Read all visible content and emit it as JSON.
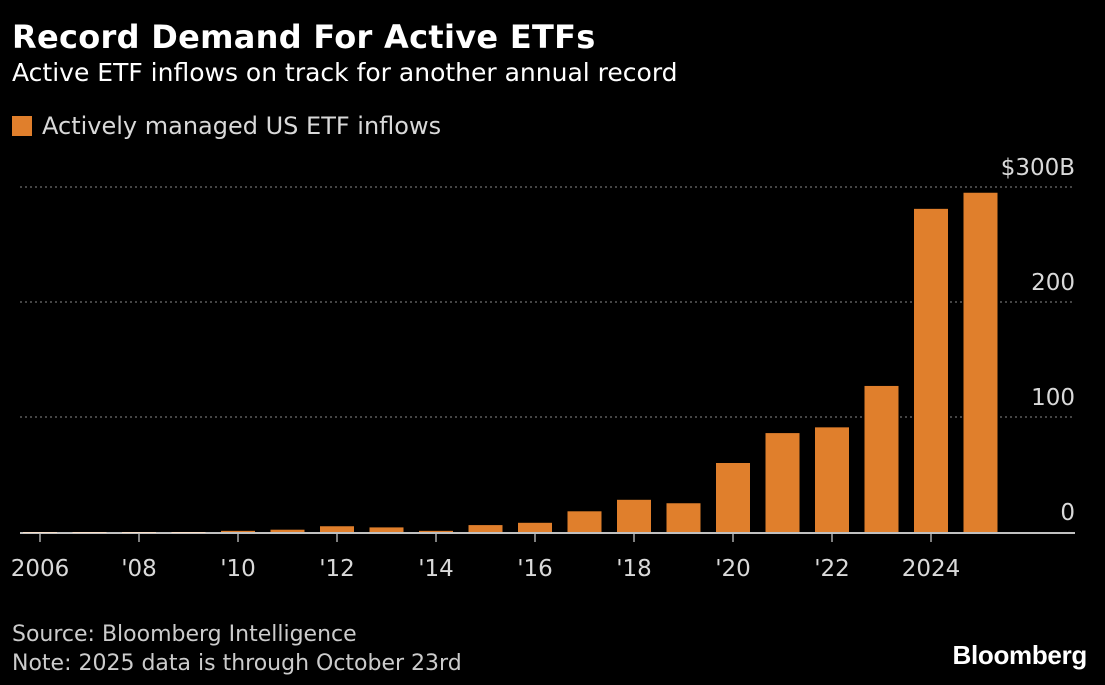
{
  "header": {
    "title": "Record Demand For Active ETFs",
    "subtitle": "Active ETF inflows on track for another annual record"
  },
  "legend": {
    "label": "Actively managed US ETF inflows",
    "color": "#e07f2c"
  },
  "footer": {
    "source": "Source: Bloomberg Intelligence",
    "note": "Note: 2025 data is through October 23rd",
    "brand": "Bloomberg"
  },
  "chart_data": {
    "type": "bar",
    "categories": [
      "2006",
      "2007",
      "2008",
      "2009",
      "2010",
      "2011",
      "2012",
      "2013",
      "2014",
      "2015",
      "2016",
      "2017",
      "2018",
      "2019",
      "2020",
      "2021",
      "2022",
      "2023",
      "2024",
      "2025"
    ],
    "x_tick_labels": [
      {
        "index": 0,
        "label": "2006"
      },
      {
        "index": 2,
        "label": "'08"
      },
      {
        "index": 4,
        "label": "'10"
      },
      {
        "index": 6,
        "label": "'12"
      },
      {
        "index": 8,
        "label": "'14"
      },
      {
        "index": 10,
        "label": "'16"
      },
      {
        "index": 12,
        "label": "'18"
      },
      {
        "index": 14,
        "label": "'20"
      },
      {
        "index": 16,
        "label": "'22"
      },
      {
        "index": 18,
        "label": "2024"
      }
    ],
    "series": [
      {
        "name": "Actively managed US ETF inflows",
        "color": "#e07f2c",
        "values": [
          -1,
          -1,
          -1,
          -0.5,
          1,
          2,
          5,
          4,
          1,
          6,
          8,
          18,
          28,
          25,
          60,
          86,
          91,
          127,
          281,
          295
        ]
      }
    ],
    "y_ticks": [
      {
        "value": 0,
        "label": "0"
      },
      {
        "value": 100,
        "label": "100"
      },
      {
        "value": 200,
        "label": "200"
      },
      {
        "value": 300,
        "label": "$300B"
      }
    ],
    "ylim": [
      -3,
      300
    ],
    "xlabel": "",
    "ylabel": "",
    "grid": true,
    "legend_position": "top-left"
  }
}
